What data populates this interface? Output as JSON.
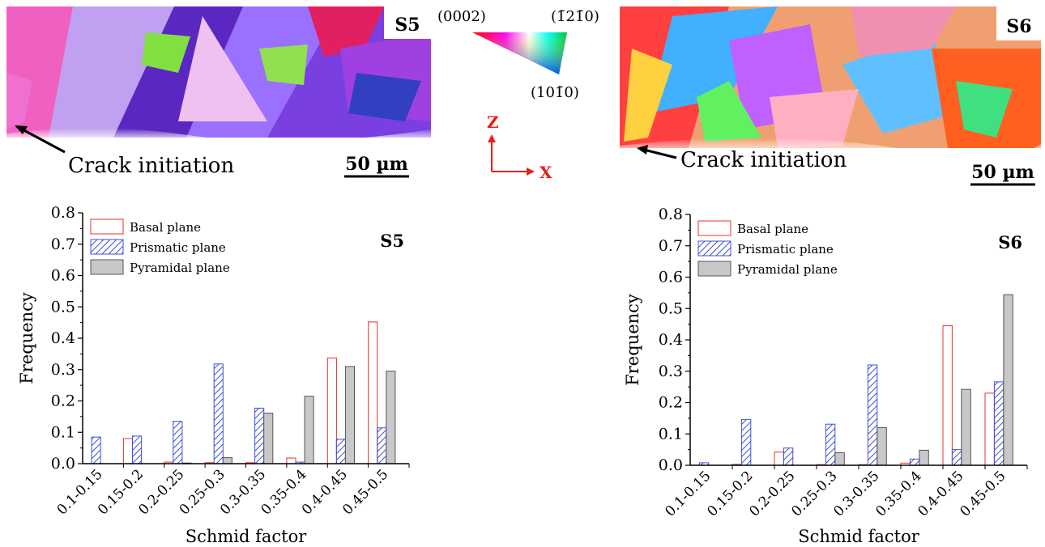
{
  "maps": [
    {
      "label": "S5",
      "crack_label": "Crack initiation",
      "scale_label": "50 µm"
    },
    {
      "label": "S6",
      "crack_label": "Crack initiation",
      "scale_label": "50 µm"
    }
  ],
  "ipf_key": {
    "labels": [
      "(0002)",
      "(1̄21̄0)",
      "(101̄0)"
    ],
    "colors": [
      "#ff0000",
      "#00c040",
      "#0040ff"
    ]
  },
  "axes_indicator": {
    "vertical": "Z",
    "horizontal": "X",
    "color": "#e8201a"
  },
  "colors": {
    "basal": "#e8302a",
    "prismatic": "#4150d8",
    "pyramidal": "#c8c8c8",
    "pyramidal_edge": "#555555"
  },
  "chart_data": [
    {
      "type": "bar",
      "panel_label": "S5",
      "categories": [
        "0.1-0.15",
        "0.15-0.2",
        "0.2-0.25",
        "0.25-0.3",
        "0.3-0.35",
        "0.35-0.4",
        "0.4-0.45",
        "0.45-0.5"
      ],
      "series": [
        {
          "name": "Basal plane",
          "values": [
            0.0,
            0.08,
            0.005,
            0.003,
            0.003,
            0.018,
            0.337,
            0.452
          ]
        },
        {
          "name": "Prismatic plane",
          "values": [
            0.085,
            0.088,
            0.135,
            0.318,
            0.177,
            0.005,
            0.078,
            0.114
          ]
        },
        {
          "name": "Pyramidal plane",
          "values": [
            0.0,
            0.0,
            0.002,
            0.019,
            0.161,
            0.215,
            0.31,
            0.295
          ]
        }
      ],
      "xlabel": "Schmid factor",
      "ylabel": "Frequency",
      "ylim": [
        0,
        0.8
      ],
      "yticks": [
        "0.0",
        "0.1",
        "0.2",
        "0.3",
        "0.4",
        "0.5",
        "0.6",
        "0.7",
        "0.8"
      ],
      "legend_position": "top-left"
    },
    {
      "type": "bar",
      "panel_label": "S6",
      "categories": [
        "0.1-0.15",
        "0.15-0.2",
        "0.2-0.25",
        "0.25-0.3",
        "0.3-0.35",
        "0.35-0.4",
        "0.4-0.45",
        "0.45-0.5"
      ],
      "series": [
        {
          "name": "Basal plane",
          "values": [
            0.0,
            0.003,
            0.042,
            0.002,
            0.002,
            0.007,
            0.445,
            0.23
          ]
        },
        {
          "name": "Prismatic plane",
          "values": [
            0.008,
            0.146,
            0.055,
            0.131,
            0.32,
            0.02,
            0.05,
            0.266
          ]
        },
        {
          "name": "Pyramidal plane",
          "values": [
            0.0,
            0.0,
            0.0,
            0.04,
            0.12,
            0.048,
            0.242,
            0.544
          ]
        }
      ],
      "xlabel": "Schmid factor",
      "ylabel": "Frequency",
      "ylim": [
        0,
        0.8
      ],
      "yticks": [
        "0.0",
        "0.1",
        "0.2",
        "0.3",
        "0.4",
        "0.5",
        "0.6",
        "0.7",
        "0.8"
      ],
      "legend_position": "top-left"
    }
  ]
}
